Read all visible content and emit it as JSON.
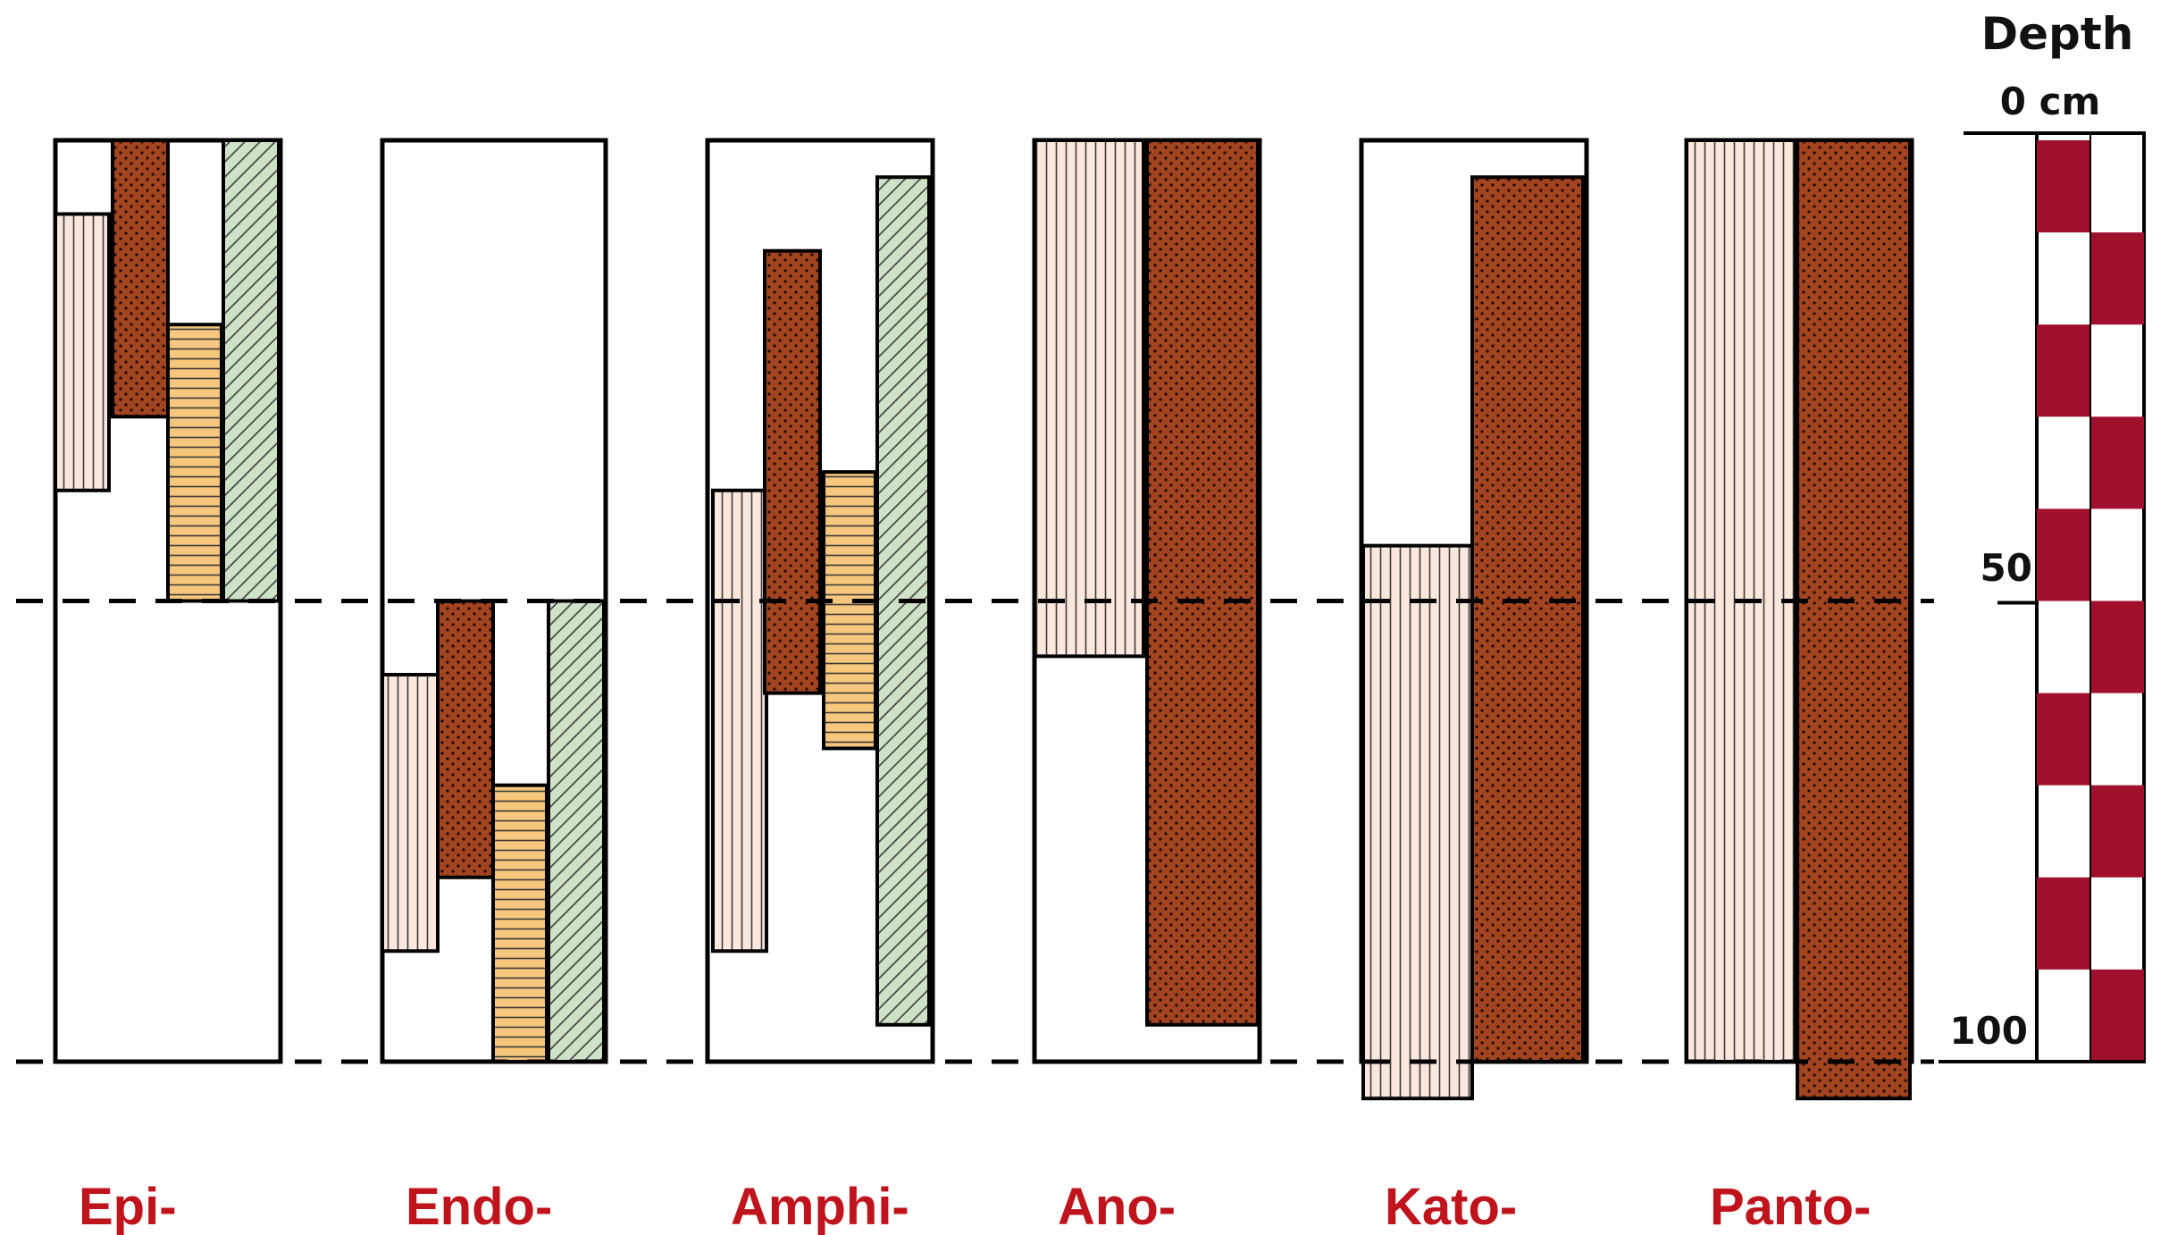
{
  "scale": {
    "title": "Depth",
    "top_label": "0 cm",
    "mid_label": "50",
    "bottom_label": "100",
    "checker_color": "#a0102e"
  },
  "patterns": {
    "vertical_lines": {
      "color": "#3a3a3a",
      "background": "#fbe7dd"
    },
    "dots": {
      "color": "#1a0a05",
      "background": "#a34420"
    },
    "horizontal_lines": {
      "color": "#3a3a3a",
      "background": "#f6c77c"
    },
    "diagonal_lines": {
      "color": "#3a3a3a",
      "background": "#cfe2c8"
    }
  },
  "columns": [
    {
      "label": "Epi-",
      "bars": [
        {
          "pattern": "vertical_lines",
          "top": 8,
          "bottom": 38
        },
        {
          "pattern": "dots",
          "top": 0,
          "bottom": 30
        },
        {
          "pattern": "horizontal_lines",
          "top": 20,
          "bottom": 50
        },
        {
          "pattern": "diagonal_lines",
          "top": 0,
          "bottom": 50
        }
      ]
    },
    {
      "label": "Endo-",
      "bars": [
        {
          "pattern": "vertical_lines",
          "top": 58,
          "bottom": 88
        },
        {
          "pattern": "dots",
          "top": 50,
          "bottom": 80
        },
        {
          "pattern": "horizontal_lines",
          "top": 70,
          "bottom": 100
        },
        {
          "pattern": "diagonal_lines",
          "top": 50,
          "bottom": 100
        }
      ]
    },
    {
      "label": "Amphi-",
      "bars": [
        {
          "pattern": "vertical_lines",
          "top": 38,
          "bottom": 88
        },
        {
          "pattern": "dots",
          "top": 12,
          "bottom": 60
        },
        {
          "pattern": "horizontal_lines",
          "top": 36,
          "bottom": 66
        },
        {
          "pattern": "diagonal_lines",
          "top": 4,
          "bottom": 96
        }
      ]
    },
    {
      "label": "Ano-",
      "bars": [
        {
          "pattern": "vertical_lines",
          "top": 0,
          "bottom": 56
        },
        {
          "pattern": "dots",
          "top": 0,
          "bottom": 96
        }
      ]
    },
    {
      "label": "Kato-",
      "bars": [
        {
          "pattern": "vertical_lines",
          "top": 44,
          "bottom": 104
        },
        {
          "pattern": "dots",
          "top": 4,
          "bottom": 100
        }
      ]
    },
    {
      "label": "Panto-",
      "bars": [
        {
          "pattern": "vertical_lines",
          "top": 0,
          "bottom": 100
        },
        {
          "pattern": "dots",
          "top": 0,
          "bottom": 104
        }
      ]
    }
  ]
}
